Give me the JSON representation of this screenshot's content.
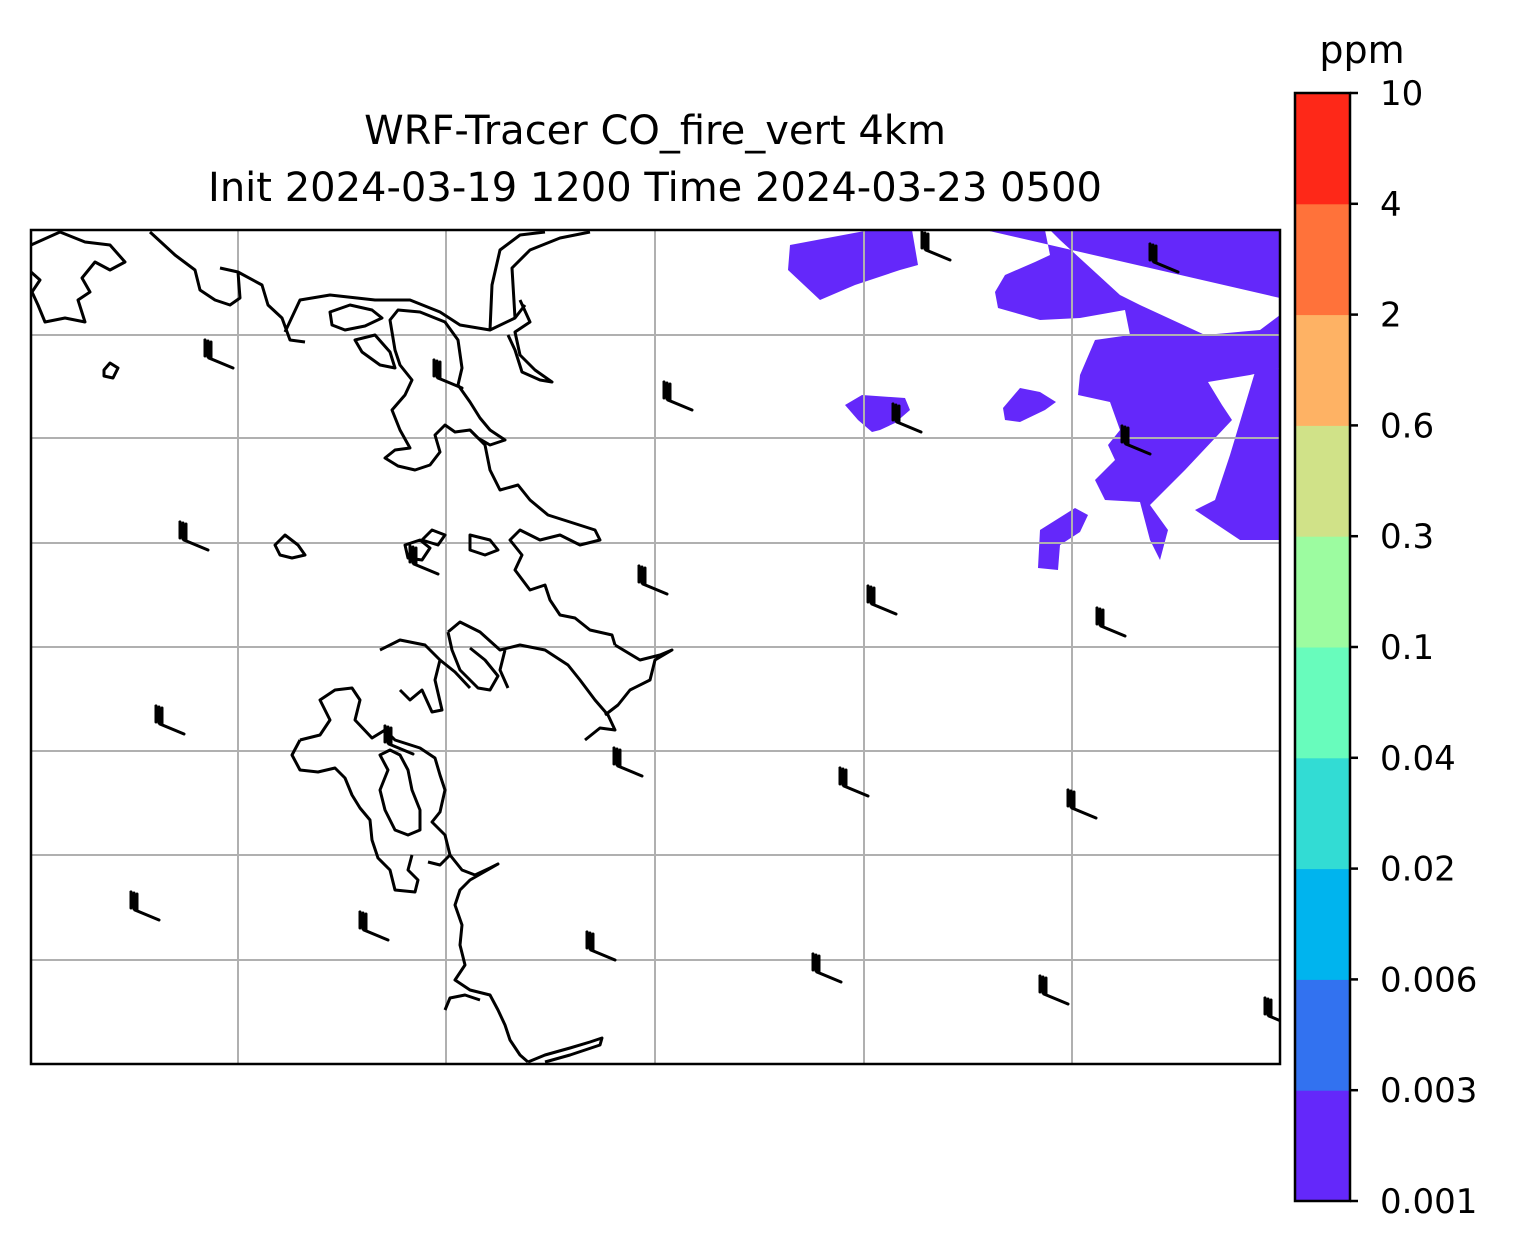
{
  "title_lines": [
    "WRF-Tracer CO_fire_vert 4km",
    "Init 2024-03-19 1200 Time 2024-03-23 0500"
  ],
  "colorbar": {
    "unit": "ppm",
    "levels": [
      "0.001",
      "0.003",
      "0.006",
      "0.02",
      "0.04",
      "0.1",
      "0.3",
      "0.6",
      "2",
      "4",
      "10"
    ],
    "colors": [
      "#6428fa",
      "#3272f0",
      "#00b4ee",
      "#32dcd4",
      "#68fcbc",
      "#9cfca0",
      "#d0e288",
      "#feb264",
      "#ff723a",
      "#fe2818"
    ]
  },
  "map": {
    "background": "#ffffff",
    "plume_color": "#6428fa",
    "gridline_color": "#b0b0b0",
    "coastline_color": "#000000",
    "wind_barb_color": "#000000",
    "gridlines_visible": true
  }
}
